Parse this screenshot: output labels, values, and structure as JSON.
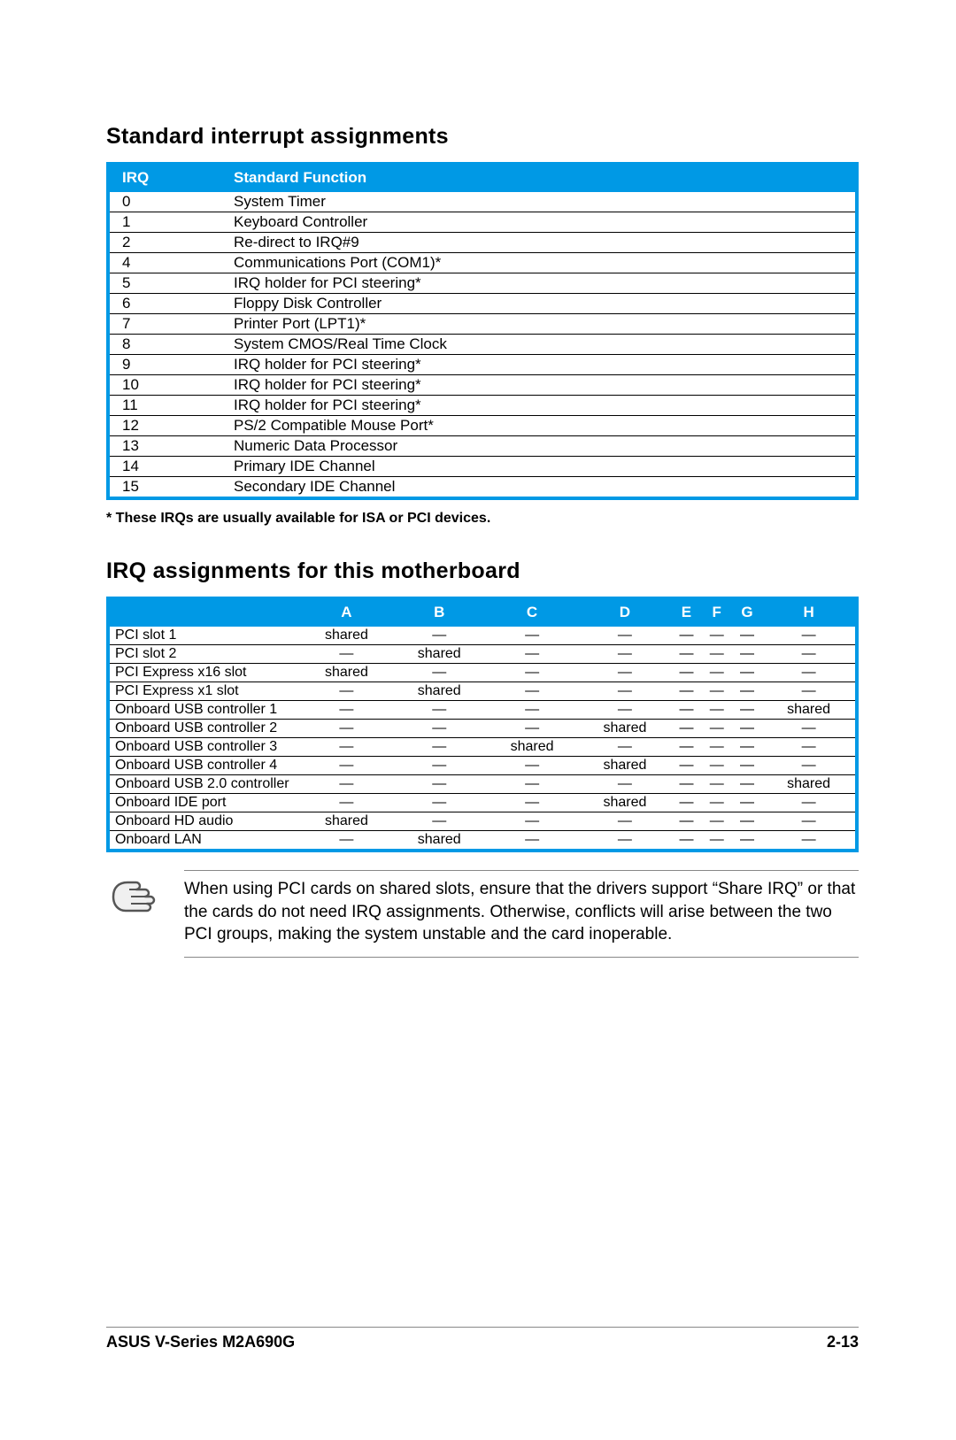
{
  "section1": {
    "title": "Standard interrupt assignments",
    "header_irq": "IRQ",
    "header_func": "Standard Function",
    "rows": [
      {
        "irq": "0",
        "func": "System Timer"
      },
      {
        "irq": "1",
        "func": "Keyboard Controller"
      },
      {
        "irq": "2",
        "func": "Re-direct to IRQ#9"
      },
      {
        "irq": "4",
        "func": "Communications Port (COM1)*"
      },
      {
        "irq": "5",
        "func": "IRQ holder for PCI steering*"
      },
      {
        "irq": "6",
        "func": "Floppy Disk Controller"
      },
      {
        "irq": "7",
        "func": "Printer Port (LPT1)*"
      },
      {
        "irq": "8",
        "func": "System CMOS/Real Time Clock"
      },
      {
        "irq": "9",
        "func": "IRQ holder for PCI steering*"
      },
      {
        "irq": "10",
        "func": "IRQ holder for PCI steering*"
      },
      {
        "irq": "11",
        "func": "IRQ holder for PCI steering*"
      },
      {
        "irq": "12",
        "func": "PS/2 Compatible Mouse Port*"
      },
      {
        "irq": "13",
        "func": "Numeric Data Processor"
      },
      {
        "irq": "14",
        "func": "Primary IDE Channel"
      },
      {
        "irq": "15",
        "func": "Secondary IDE Channel"
      }
    ],
    "footnote": "* These IRQs are usually available for ISA or PCI devices."
  },
  "section2": {
    "title": "IRQ assignments for this motherboard",
    "columns": [
      "",
      "A",
      "B",
      "C",
      "D",
      "E",
      "F",
      "G",
      "H"
    ],
    "dash": "—",
    "shared": "shared",
    "rows": [
      {
        "label": "PCI slot 1",
        "vals": [
          "shared",
          "—",
          "—",
          "—",
          "—",
          "—",
          "—",
          "—"
        ]
      },
      {
        "label": "PCI slot 2",
        "vals": [
          "—",
          "shared",
          "—",
          "—",
          "—",
          "—",
          "—",
          "—"
        ]
      },
      {
        "label": "PCI Express x16 slot",
        "vals": [
          "shared",
          "—",
          "—",
          "—",
          "—",
          "—",
          "—",
          "—"
        ]
      },
      {
        "label": "PCI Express x1 slot",
        "vals": [
          "—",
          "shared",
          "—",
          "—",
          "—",
          "—",
          "—",
          "—"
        ]
      },
      {
        "label": "Onboard USB controller 1",
        "vals": [
          "—",
          "—",
          "—",
          "—",
          "—",
          "—",
          "—",
          "shared"
        ]
      },
      {
        "label": "Onboard USB controller 2",
        "vals": [
          "—",
          "—",
          "—",
          "shared",
          "—",
          "—",
          "—",
          "—"
        ]
      },
      {
        "label": "Onboard USB controller 3",
        "vals": [
          "—",
          "—",
          "shared",
          "—",
          "—",
          "—",
          "—",
          "—"
        ]
      },
      {
        "label": "Onboard USB controller 4",
        "vals": [
          "—",
          "—",
          "—",
          "shared",
          "—",
          "—",
          "—",
          "—"
        ]
      },
      {
        "label": "Onboard USB 2.0 controller",
        "vals": [
          "—",
          "—",
          "—",
          "—",
          "—",
          "—",
          "—",
          "shared"
        ]
      },
      {
        "label": "Onboard IDE port",
        "vals": [
          "—",
          "—",
          "—",
          "shared",
          "—",
          "—",
          "—",
          "—"
        ]
      },
      {
        "label": "Onboard HD audio",
        "vals": [
          "shared",
          "—",
          "—",
          "—",
          "—",
          "—",
          "—",
          "—"
        ]
      },
      {
        "label": "Onboard LAN",
        "vals": [
          "—",
          "shared",
          "—",
          "—",
          "—",
          "—",
          "—",
          "—"
        ]
      }
    ]
  },
  "note": {
    "text": "When using PCI cards on shared slots, ensure that the drivers support “Share IRQ” or that the cards do not need IRQ assignments. Otherwise, conflicts will arise between the two PCI groups, making the system unstable and the card inoperable."
  },
  "footer": {
    "left": "ASUS V-Series M2A690G",
    "right": "2-13"
  },
  "colors": {
    "header_bg": "#0099e5",
    "header_fg": "#ffffff",
    "rule": "#000000",
    "note_rule": "#888888"
  },
  "typography": {
    "title_pt": 25,
    "body_pt": 17,
    "footnote_pt": 16,
    "note_pt": 19,
    "footer_pt": 18,
    "family": "Arial"
  }
}
